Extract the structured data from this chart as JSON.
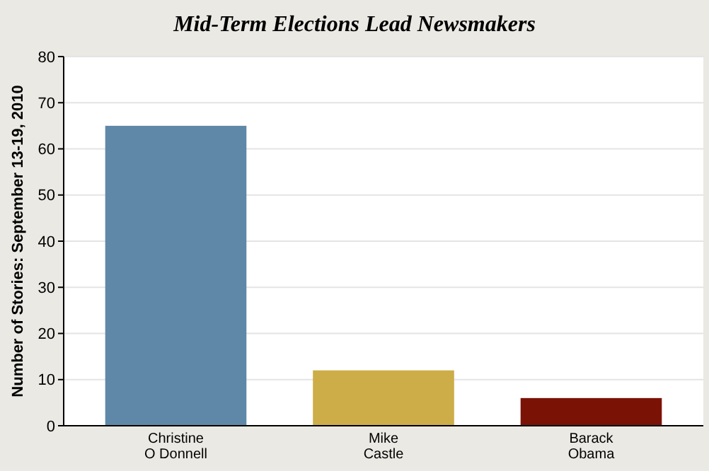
{
  "chart_data": {
    "type": "bar",
    "title": "Mid-Term Elections Lead Newsmakers",
    "ylabel": "Number of Stories: September 13-19, 2010",
    "categories": [
      "Christine\nO Donnell",
      "Mike\nCastle",
      "Barack\nObama"
    ],
    "values": [
      65,
      12,
      6
    ],
    "colors": [
      "#5f88a8",
      "#cdad47",
      "#7b1206"
    ],
    "ylim": [
      0,
      80
    ],
    "yticks": [
      0,
      10,
      20,
      30,
      40,
      50,
      60,
      70,
      80
    ],
    "grid": "y"
  }
}
